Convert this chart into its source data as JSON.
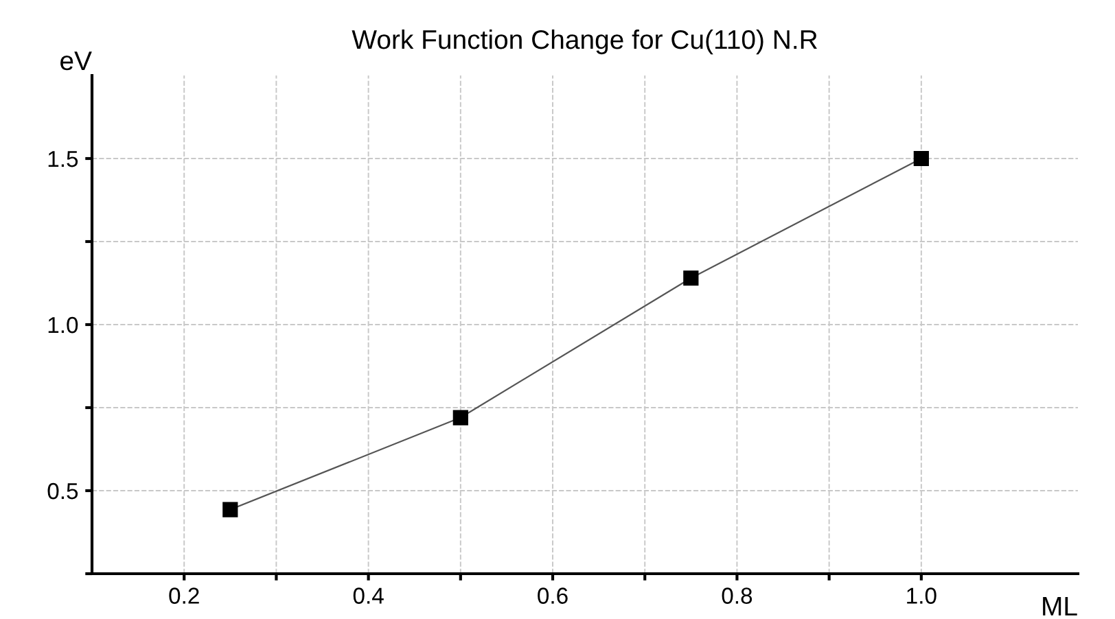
{
  "chart_data": {
    "type": "line",
    "title": "Work Function Change for Cu(110) N.R",
    "xlabel": "ML",
    "ylabel": "eV",
    "x": [
      0.25,
      0.5,
      0.75,
      1.0
    ],
    "series": [
      {
        "color": "#555555",
        "values": [
          0.443,
          0.72,
          1.14,
          1.5
        ]
      }
    ],
    "marker": "square",
    "line_style": "solid",
    "grid": true,
    "xlim": [
      0.1,
      1.17
    ],
    "xticks": [
      0.2,
      {
        "value": 0.3,
        "label": null
      },
      0.4,
      {
        "value": 0.5,
        "label": null
      },
      0.6,
      {
        "value": 0.7,
        "label": null
      },
      0.8,
      {
        "value": 0.9,
        "label": null
      },
      {
        "value": 1.0,
        "label": "1.0"
      }
    ],
    "ylim": [
      0.25,
      1.75
    ],
    "yticks": [
      {
        "value": 0.25,
        "label": null
      },
      0.5,
      {
        "value": 0.75,
        "label": null
      },
      {
        "value": 1.0,
        "label": "1.0"
      },
      {
        "value": 1.25,
        "label": null
      },
      1.5
    ]
  }
}
